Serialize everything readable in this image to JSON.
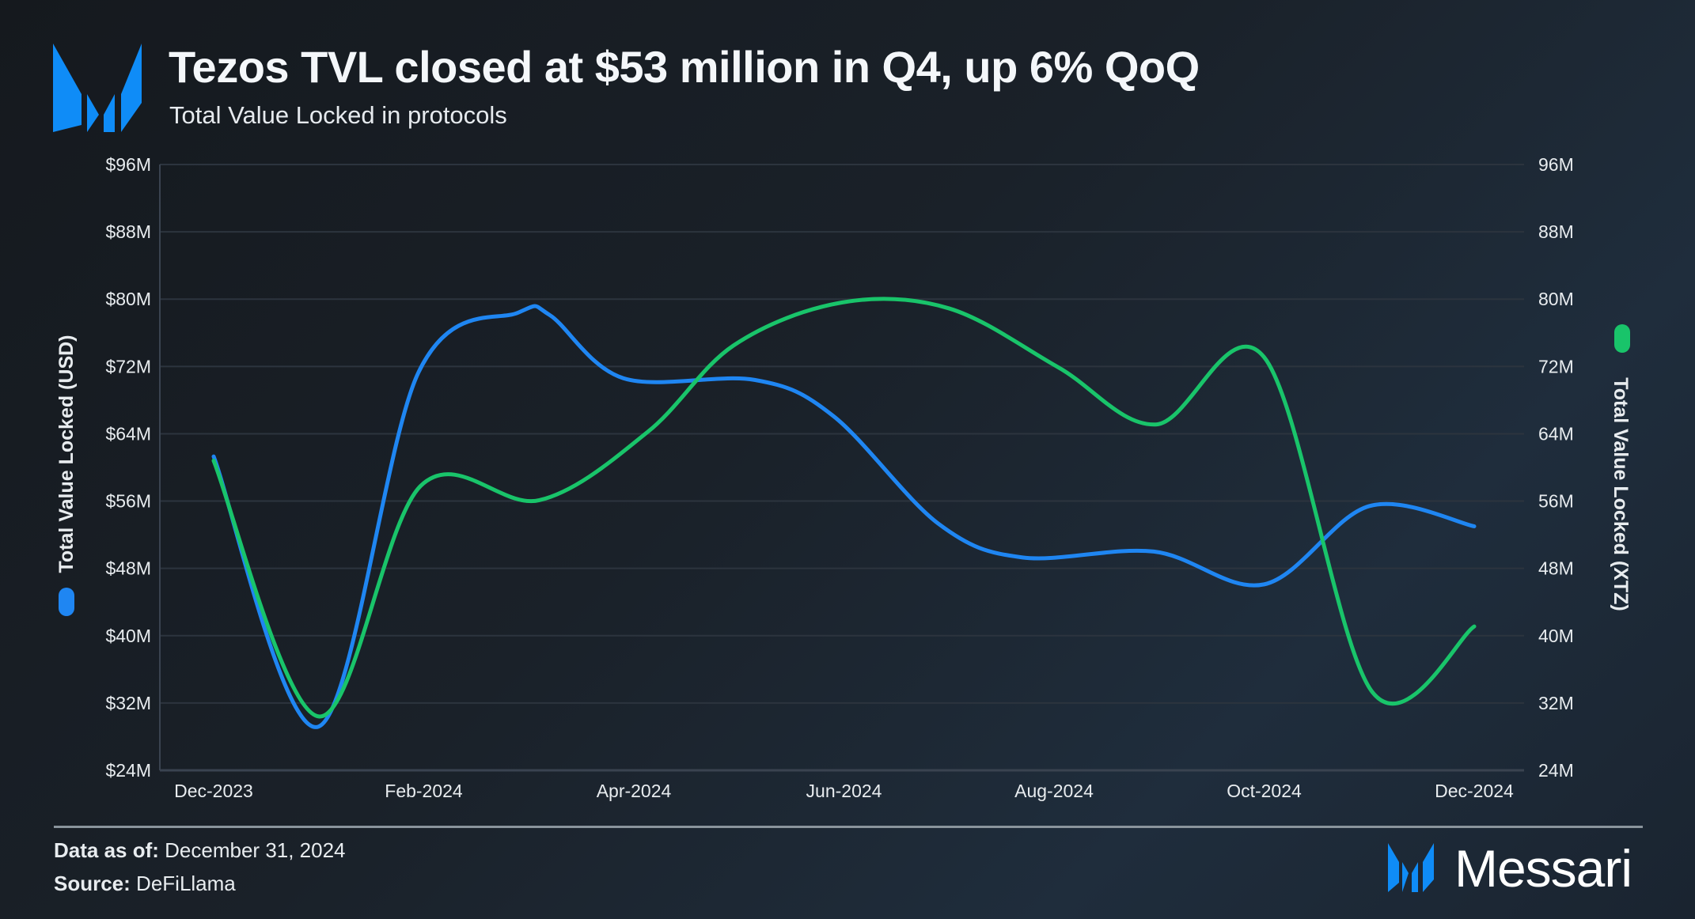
{
  "header": {
    "title": "Tezos TVL closed at $53 million in Q4, up 6% QoQ",
    "subtitle": "Total Value Locked in protocols"
  },
  "footer": {
    "data_as_of_label": "Data as of:",
    "data_as_of_value": "December 31, 2024",
    "source_label": "Source:",
    "source_value": "DeFiLlama",
    "brand": "Messari"
  },
  "colors": {
    "usd": "#1f86f2",
    "xtz": "#19c46a",
    "logo": "#0f8cf7"
  },
  "chart_data": {
    "type": "line",
    "title": "Tezos TVL closed at $53 million in Q4, up 6% QoQ",
    "subtitle": "Total Value Locked in protocols",
    "xlabel": "",
    "ylabel_left": "Total Value Locked (USD)",
    "ylabel_right": "Total Value Locked (XTZ)",
    "x_ticks": [
      "Dec-2023",
      "Feb-2024",
      "Apr-2024",
      "Jun-2024",
      "Aug-2024",
      "Oct-2024",
      "Dec-2024"
    ],
    "x_tick_months": [
      0,
      2,
      4,
      6,
      8,
      10,
      12
    ],
    "y_left_ticks": [
      "$24M",
      "$32M",
      "$40M",
      "$48M",
      "$56M",
      "$64M",
      "$72M",
      "$80M",
      "$88M",
      "$96M"
    ],
    "y_right_ticks": [
      "24M",
      "32M",
      "40M",
      "48M",
      "56M",
      "64M",
      "72M",
      "80M",
      "88M",
      "96M"
    ],
    "ylim": [
      24,
      96
    ],
    "xlim": [
      0,
      12
    ],
    "grid": true,
    "series": [
      {
        "name": "Total Value Locked (USD)",
        "axis": "left",
        "color": "#1f86f2",
        "x": [
          0,
          1,
          1.95,
          2.9,
          3.2,
          3.9,
          5.15,
          5.9,
          6.9,
          7.7,
          8.95,
          10,
          11,
          12
        ],
        "values": [
          61.3,
          29.2,
          71.3,
          78.4,
          78.1,
          70.6,
          70.4,
          66.1,
          53.3,
          49.3,
          50.0,
          46.1,
          55.4,
          53.0
        ]
      },
      {
        "name": "Total Value Locked (XTZ)",
        "axis": "right",
        "color": "#19c46a",
        "x": [
          0,
          1,
          1.97,
          3.1,
          4.13,
          4.95,
          5.98,
          7.0,
          8.04,
          8.97,
          10,
          11.03,
          12
        ],
        "values": [
          60.8,
          30.4,
          57.8,
          56.1,
          64.2,
          74.5,
          79.6,
          78.9,
          71.9,
          65.1,
          73.1,
          33.3,
          41.1
        ]
      }
    ]
  }
}
